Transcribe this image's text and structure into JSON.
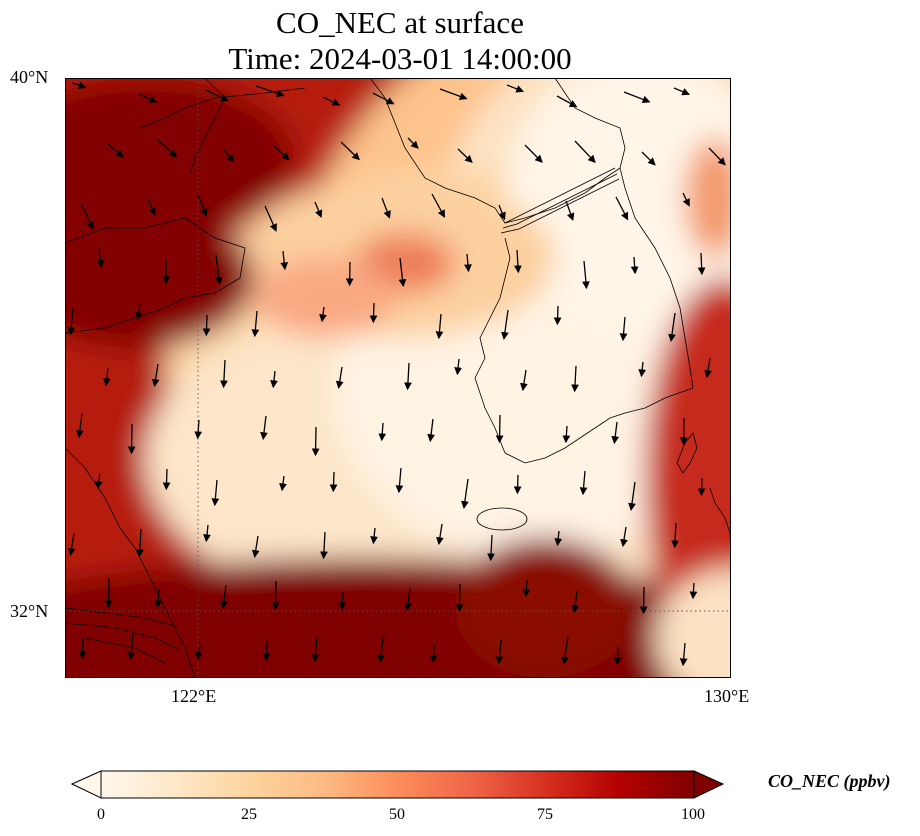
{
  "map": {
    "title_line1": "CO_NEC at surface",
    "title_line2": "Time: 2024-03-01 14:00:00",
    "variable": "CO_NEC",
    "units": "ppbv",
    "extent": {
      "lon_min": 120,
      "lon_max": 130,
      "lat_min": 31,
      "lat_max": 40
    },
    "lat_ticks": [
      {
        "value": 40,
        "label": "40°N"
      },
      {
        "value": 32,
        "label": "32°N"
      }
    ],
    "lon_ticks": [
      {
        "value": 122,
        "label": "122°E"
      },
      {
        "value": 130,
        "label": "130°E"
      }
    ],
    "gridline_style": "dotted",
    "colormap": "OrRd",
    "colors": [
      "#fff7ec",
      "#fee8c8",
      "#fdd49e",
      "#fdbb84",
      "#fc8d59",
      "#ef6548",
      "#d7301f",
      "#b30000",
      "#7f0000"
    ],
    "wind_vectors": "black arrows, predominantly southward flow"
  },
  "colorbar": {
    "label": "CO_NEC (ppbv)",
    "min": 0,
    "max": 100,
    "extend": "both",
    "ticks": [
      {
        "value": 0,
        "label": "0"
      },
      {
        "value": 25,
        "label": "25"
      },
      {
        "value": 50,
        "label": "50"
      },
      {
        "value": 75,
        "label": "75"
      },
      {
        "value": 100,
        "label": "100"
      }
    ]
  }
}
